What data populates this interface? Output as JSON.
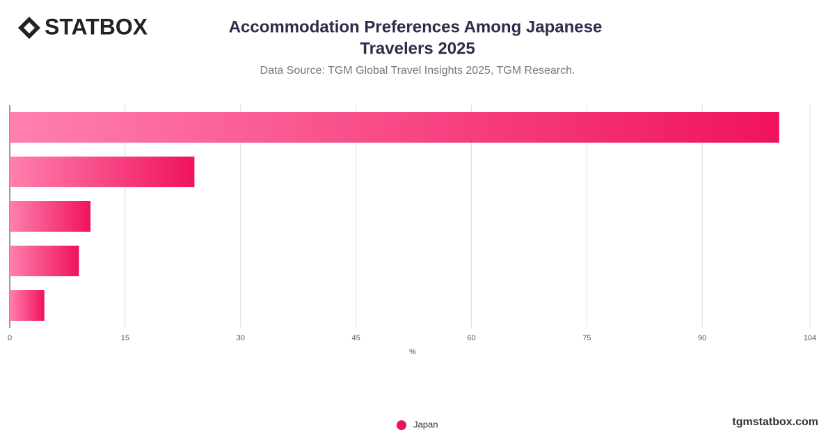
{
  "logo": "STATBOX",
  "footer": "tgmstatbox.com",
  "chart_data": {
    "type": "hbar",
    "title": [
      "Accommodation Preferences Among Japanese",
      "Travelers 2025"
    ],
    "subtitle": "Data Source: TGM Global Travel Insights 2025, TGM Research.",
    "categories": [
      null,
      null,
      null,
      null,
      null
    ],
    "series": [
      {
        "name": "Japan",
        "color": "#f0125f",
        "values": [
          100,
          24,
          10.5,
          9,
          4.5
        ]
      }
    ],
    "xlabel": "%",
    "xlim": [
      0,
      104
    ],
    "xticks": [
      0,
      15,
      30,
      45,
      60,
      75,
      90,
      104
    ],
    "grid": true,
    "legend": "bottom"
  }
}
